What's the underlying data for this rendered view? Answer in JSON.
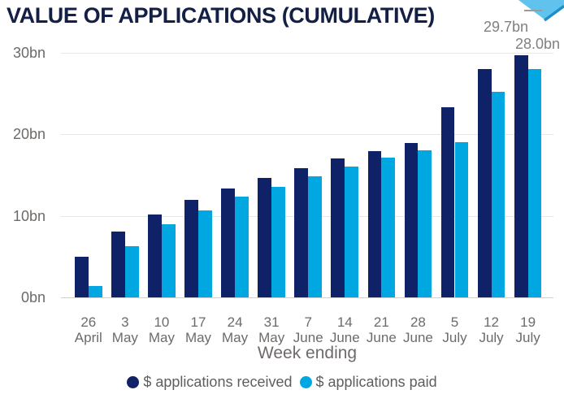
{
  "title": "VALUE OF APPLICATIONS (CUMULATIVE)",
  "chart_data": {
    "type": "bar",
    "title": "VALUE OF APPLICATIONS (CUMULATIVE)",
    "xlabel": "Week ending",
    "ylabel": "",
    "ylim": [
      0,
      30
    ],
    "grid": true,
    "legend_position": "bottom",
    "yticks": [
      {
        "value": 0,
        "label": "0bn"
      },
      {
        "value": 10,
        "label": "10bn"
      },
      {
        "value": 20,
        "label": "20bn"
      },
      {
        "value": 30,
        "label": "30bn"
      }
    ],
    "categories": [
      "26 April",
      "3 May",
      "10 May",
      "17 May",
      "24 May",
      "31 May",
      "7 June",
      "14 June",
      "21 June",
      "28 June",
      "5 July",
      "12 July",
      "19 July"
    ],
    "series": [
      {
        "name": "$ applications received",
        "color": "#0f2167",
        "values": [
          5.0,
          8.1,
          10.1,
          11.9,
          13.3,
          14.6,
          15.8,
          17.0,
          17.9,
          18.9,
          23.3,
          28.0,
          29.7
        ]
      },
      {
        "name": "$ applications paid",
        "color": "#00a7e1",
        "values": [
          1.4,
          6.3,
          9.0,
          10.6,
          12.3,
          13.5,
          14.8,
          16.0,
          17.1,
          18.0,
          19.0,
          25.2,
          28.0
        ]
      }
    ],
    "data_labels": {
      "received": "29.7bn",
      "paid": "28.0bn"
    }
  },
  "colors": {
    "title_text": "#131f45",
    "axis_text": "#6e6a68",
    "data_label_text": "#82807e",
    "gridline": "#e7e7e7",
    "arrow_fill": "#5fc3ee",
    "arrow_edge": "#1f8dc6"
  }
}
